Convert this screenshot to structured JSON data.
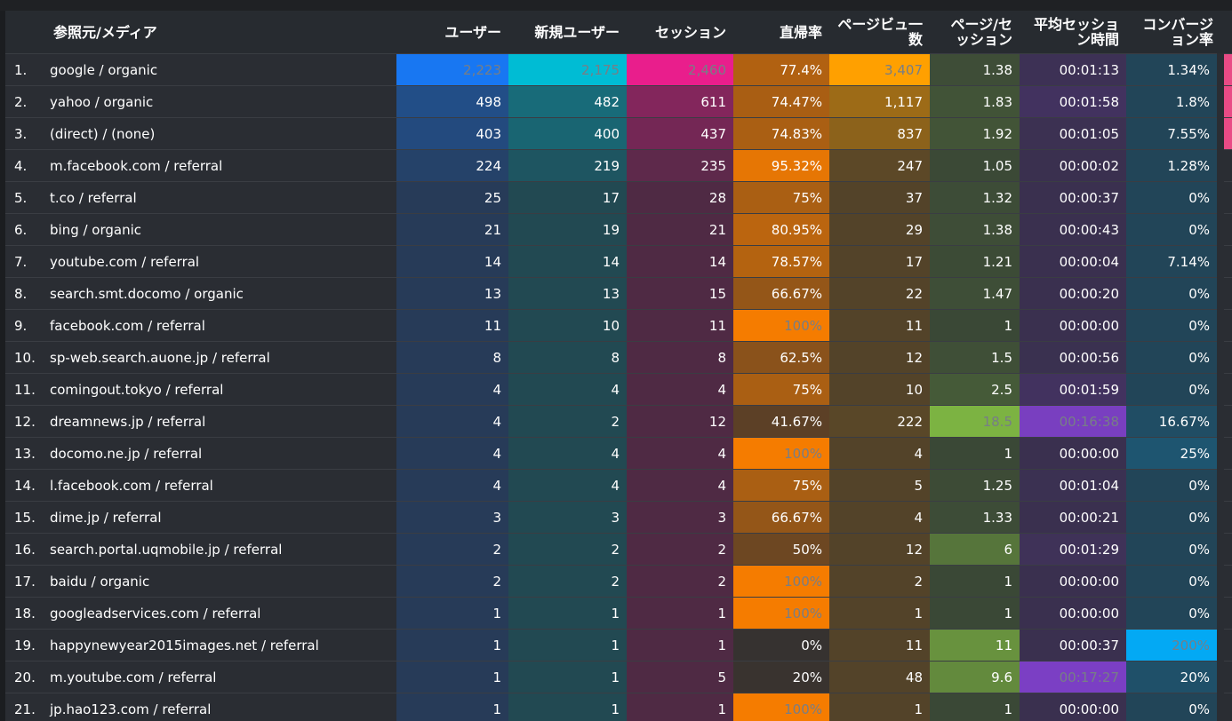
{
  "columns": {
    "dimension": "参照元/メディア",
    "users": "ユーザー",
    "new_users": "新規ユーザー",
    "sessions": "セッション",
    "bounce_rate": "直帰率",
    "pageviews": "ページビュ一数",
    "pages_per_session": "ページ/セッション",
    "avg_session_duration": "平均セッション時間",
    "conversion_rate": "コンバージョン率"
  },
  "colors": {
    "users": "#1877f2",
    "new_users": "#00bcd4",
    "sessions": "#e91e8c",
    "bounce_rate": "#f57c00",
    "pageviews": "#ffa000",
    "pages_per_session": "#7cb342",
    "avg_session_duration": "#7b3fc4",
    "conversion_rate": "#03a9f4",
    "right_stripe": "#e94b85"
  },
  "rows": [
    {
      "index": "1.",
      "name": "google / organic",
      "users": "2,223",
      "new_users": "2,175",
      "sessions": "2,460",
      "bounce_rate": "77.4%",
      "pageviews": "3,407",
      "pages_per_session": "1.38",
      "avg_session_duration": "00:01:13",
      "conversion_rate": "1.34%"
    },
    {
      "index": "2.",
      "name": "yahoo / organic",
      "users": "498",
      "new_users": "482",
      "sessions": "611",
      "bounce_rate": "74.47%",
      "pageviews": "1,117",
      "pages_per_session": "1.83",
      "avg_session_duration": "00:01:58",
      "conversion_rate": "1.8%"
    },
    {
      "index": "3.",
      "name": "(direct) / (none)",
      "users": "403",
      "new_users": "400",
      "sessions": "437",
      "bounce_rate": "74.83%",
      "pageviews": "837",
      "pages_per_session": "1.92",
      "avg_session_duration": "00:01:05",
      "conversion_rate": "7.55%"
    },
    {
      "index": "4.",
      "name": "m.facebook.com / referral",
      "users": "224",
      "new_users": "219",
      "sessions": "235",
      "bounce_rate": "95.32%",
      "pageviews": "247",
      "pages_per_session": "1.05",
      "avg_session_duration": "00:00:02",
      "conversion_rate": "1.28%"
    },
    {
      "index": "5.",
      "name": "t.co / referral",
      "users": "25",
      "new_users": "17",
      "sessions": "28",
      "bounce_rate": "75%",
      "pageviews": "37",
      "pages_per_session": "1.32",
      "avg_session_duration": "00:00:37",
      "conversion_rate": "0%"
    },
    {
      "index": "6.",
      "name": "bing / organic",
      "users": "21",
      "new_users": "19",
      "sessions": "21",
      "bounce_rate": "80.95%",
      "pageviews": "29",
      "pages_per_session": "1.38",
      "avg_session_duration": "00:00:43",
      "conversion_rate": "0%"
    },
    {
      "index": "7.",
      "name": "youtube.com / referral",
      "users": "14",
      "new_users": "14",
      "sessions": "14",
      "bounce_rate": "78.57%",
      "pageviews": "17",
      "pages_per_session": "1.21",
      "avg_session_duration": "00:00:04",
      "conversion_rate": "7.14%"
    },
    {
      "index": "8.",
      "name": "search.smt.docomo / organic",
      "users": "13",
      "new_users": "13",
      "sessions": "15",
      "bounce_rate": "66.67%",
      "pageviews": "22",
      "pages_per_session": "1.47",
      "avg_session_duration": "00:00:20",
      "conversion_rate": "0%"
    },
    {
      "index": "9.",
      "name": "facebook.com / referral",
      "users": "11",
      "new_users": "10",
      "sessions": "11",
      "bounce_rate": "100%",
      "pageviews": "11",
      "pages_per_session": "1",
      "avg_session_duration": "00:00:00",
      "conversion_rate": "0%"
    },
    {
      "index": "10.",
      "name": "sp-web.search.auone.jp / referral",
      "users": "8",
      "new_users": "8",
      "sessions": "8",
      "bounce_rate": "62.5%",
      "pageviews": "12",
      "pages_per_session": "1.5",
      "avg_session_duration": "00:00:56",
      "conversion_rate": "0%"
    },
    {
      "index": "11.",
      "name": "comingout.tokyo / referral",
      "users": "4",
      "new_users": "4",
      "sessions": "4",
      "bounce_rate": "75%",
      "pageviews": "10",
      "pages_per_session": "2.5",
      "avg_session_duration": "00:01:59",
      "conversion_rate": "0%"
    },
    {
      "index": "12.",
      "name": "dreamnews.jp / referral",
      "users": "4",
      "new_users": "2",
      "sessions": "12",
      "bounce_rate": "41.67%",
      "pageviews": "222",
      "pages_per_session": "18.5",
      "avg_session_duration": "00:16:38",
      "conversion_rate": "16.67%"
    },
    {
      "index": "13.",
      "name": "docomo.ne.jp / referral",
      "users": "4",
      "new_users": "4",
      "sessions": "4",
      "bounce_rate": "100%",
      "pageviews": "4",
      "pages_per_session": "1",
      "avg_session_duration": "00:00:00",
      "conversion_rate": "25%"
    },
    {
      "index": "14.",
      "name": "l.facebook.com / referral",
      "users": "4",
      "new_users": "4",
      "sessions": "4",
      "bounce_rate": "75%",
      "pageviews": "5",
      "pages_per_session": "1.25",
      "avg_session_duration": "00:01:04",
      "conversion_rate": "0%"
    },
    {
      "index": "15.",
      "name": "dime.jp / referral",
      "users": "3",
      "new_users": "3",
      "sessions": "3",
      "bounce_rate": "66.67%",
      "pageviews": "4",
      "pages_per_session": "1.33",
      "avg_session_duration": "00:00:21",
      "conversion_rate": "0%"
    },
    {
      "index": "16.",
      "name": "search.portal.uqmobile.jp / referral",
      "users": "2",
      "new_users": "2",
      "sessions": "2",
      "bounce_rate": "50%",
      "pageviews": "12",
      "pages_per_session": "6",
      "avg_session_duration": "00:01:29",
      "conversion_rate": "0%"
    },
    {
      "index": "17.",
      "name": "baidu / organic",
      "users": "2",
      "new_users": "2",
      "sessions": "2",
      "bounce_rate": "100%",
      "pageviews": "2",
      "pages_per_session": "1",
      "avg_session_duration": "00:00:00",
      "conversion_rate": "0%"
    },
    {
      "index": "18.",
      "name": "googleadservices.com / referral",
      "users": "1",
      "new_users": "1",
      "sessions": "1",
      "bounce_rate": "100%",
      "pageviews": "1",
      "pages_per_session": "1",
      "avg_session_duration": "00:00:00",
      "conversion_rate": "0%"
    },
    {
      "index": "19.",
      "name": "happynewyear2015images.net / referral",
      "users": "1",
      "new_users": "1",
      "sessions": "1",
      "bounce_rate": "0%",
      "pageviews": "11",
      "pages_per_session": "11",
      "avg_session_duration": "00:00:37",
      "conversion_rate": "200%"
    },
    {
      "index": "20.",
      "name": "m.youtube.com / referral",
      "users": "1",
      "new_users": "1",
      "sessions": "5",
      "bounce_rate": "20%",
      "pageviews": "48",
      "pages_per_session": "9.6",
      "avg_session_duration": "00:17:27",
      "conversion_rate": "20%"
    },
    {
      "index": "21.",
      "name": "jp.hao123.com / referral",
      "users": "1",
      "new_users": "1",
      "sessions": "1",
      "bounce_rate": "100%",
      "pageviews": "1",
      "pages_per_session": "1",
      "avg_session_duration": "00:00:00",
      "conversion_rate": "0%"
    }
  ]
}
